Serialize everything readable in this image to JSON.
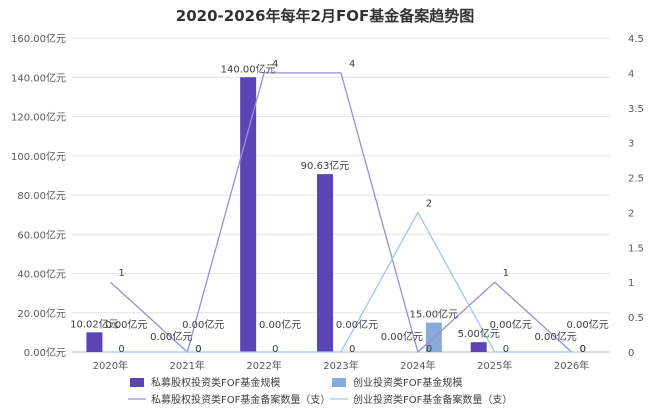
{
  "chart_data": {
    "type": "bar",
    "title": "2020-2026年每年2月FOF基金备案趋势图",
    "categories": [
      "2020年",
      "2021年",
      "2022年",
      "2023年",
      "2024年",
      "2025年",
      "2026年"
    ],
    "y_left": {
      "ylim": [
        0,
        160
      ],
      "ticks": [
        0,
        20,
        40,
        60,
        80,
        100,
        120,
        140,
        160
      ],
      "tick_labels": [
        "0.00亿元",
        "20.00亿元",
        "40.00亿元",
        "60.00亿元",
        "80.00亿元",
        "100.00亿元",
        "120.00亿元",
        "140.00亿元",
        "160.00亿元"
      ]
    },
    "y_right": {
      "ylim": [
        0,
        4.5
      ],
      "ticks": [
        0,
        0.5,
        1,
        1.5,
        2,
        2.5,
        3,
        3.5,
        4,
        4.5
      ],
      "tick_labels": [
        "0",
        "0.5",
        "1",
        "1.5",
        "2",
        "2.5",
        "3",
        "3.5",
        "4",
        "4.5"
      ]
    },
    "bar_series": [
      {
        "name": "私募股权投资类FOF基金规模",
        "color": "#5b45b5",
        "values": [
          10.02,
          0,
          140,
          90.63,
          0,
          5,
          0
        ],
        "labels": [
          "10.02亿元",
          "0.00亿元",
          "140.00亿元",
          "90.63亿元",
          "0.00亿元",
          "5.00亿元",
          "0.00亿元"
        ]
      },
      {
        "name": "创业投资类FOF基金规模",
        "color": "#8aa9dc",
        "values": [
          0,
          0,
          0,
          0,
          15,
          0,
          0
        ],
        "labels": [
          "0.00亿元",
          "0.00亿元",
          "0.00亿元",
          "0.00亿元",
          "15.00亿元",
          "0.00亿元",
          "0.00亿元"
        ]
      }
    ],
    "line_series": [
      {
        "name": "私募股权投资类FOF基金备案数量（支）",
        "color": "#9b8fd4",
        "values": [
          1,
          0,
          4,
          4,
          0,
          1,
          0
        ],
        "labels": [
          "1",
          "0",
          "4",
          "4",
          "0",
          "1",
          "0"
        ]
      },
      {
        "name": "创业投资类FOF基金备案数量（支）",
        "color": "#a9c1ec",
        "values": [
          0,
          0,
          0,
          0,
          2,
          0,
          0
        ],
        "labels": [
          "0",
          "0",
          "0",
          "0",
          "2",
          "0",
          "0"
        ]
      }
    ],
    "grid": true,
    "legend_position": "bottom"
  }
}
